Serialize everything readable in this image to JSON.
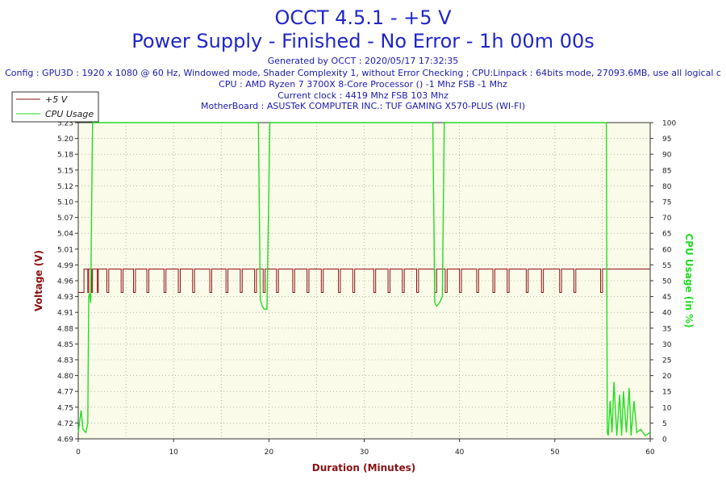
{
  "colors": {
    "title": "#1f26c9",
    "info": "#1a1ab0",
    "voltage": "#8b1111",
    "cpu": "#22dd22",
    "plot_bg": "#fbfbea",
    "grid": "#8a8a70",
    "axis_text": "#202020"
  },
  "chart_data": {
    "type": "line",
    "title": "OCCT 4.5.1 - +5 V",
    "subtitle": "Power Supply - Finished - No Error - 1h 00m 00s",
    "info_lines": [
      "Generated by OCCT : 2020/05/17 17:32:35",
      "Config : GPU3D : 1920 x 1080 @ 60 Hz, Windowed mode, Shader Complexity 1, without Error Checking ; CPU:Linpack : 64bits mode, 27093.6MB, use all logical c",
      "CPU : AMD Ryzen 7 3700X 8-Core Processor () -1 Mhz FSB -1 Mhz",
      "Current clock : 4419 Mhz FSB 103 Mhz",
      "MotherBoard : ASUSTeK COMPUTER INC.: TUF GAMING X570-PLUS (WI-FI)"
    ],
    "xlabel": "Duration (Minutes)",
    "ylabel_left": "Voltage (V)",
    "ylabel_right": "CPU Usage (in %)",
    "xlim": [
      0,
      60
    ],
    "xticks": [
      "0",
      "10",
      "20",
      "30",
      "40",
      "50",
      "60"
    ],
    "ylim_left": [
      4.69,
      5.23
    ],
    "yticks_left": [
      "4.69",
      "4.72",
      "4.75",
      "4.77",
      "4.80",
      "4.83",
      "4.85",
      "4.88",
      "4.91",
      "4.93",
      "4.96",
      "4.99",
      "5.01",
      "5.04",
      "5.07",
      "5.10",
      "5.12",
      "5.15",
      "5.18",
      "5.20",
      "5.23"
    ],
    "ylim_right": [
      0,
      100
    ],
    "yticks_right": [
      "0",
      "5",
      "10",
      "15",
      "20",
      "25",
      "30",
      "35",
      "40",
      "45",
      "50",
      "55",
      "60",
      "65",
      "70",
      "75",
      "80",
      "85",
      "90",
      "95",
      "100"
    ],
    "grid": true,
    "legend": {
      "position": "top-left",
      "items": [
        "+5 V",
        "CPU Usage"
      ]
    },
    "series": [
      {
        "name": "+5 V",
        "axis": "left",
        "base": 4.94,
        "high": 4.98,
        "final_level": 4.98,
        "final_from_minute": 55.0,
        "note_pattern": "oscillates between low and high level while load runs",
        "x": [
          0,
          0.5,
          0.6,
          1.0,
          1.1,
          1.4,
          1.5,
          2.0,
          2.1,
          3.0,
          3.2,
          4.5,
          4.7,
          5.8,
          6.0,
          7.2,
          7.4,
          9.0,
          9.2,
          10.5,
          10.7,
          12.0,
          12.2,
          13.8,
          14.0,
          15.5,
          15.7,
          17.0,
          17.2,
          18.5,
          18.7,
          19.4,
          19.6,
          20.8,
          21.0,
          22.5,
          22.7,
          24.0,
          24.2,
          25.5,
          25.7,
          27.3,
          27.5,
          28.8,
          29.0,
          31.0,
          31.2,
          32.5,
          32.7,
          34.0,
          34.2,
          35.5,
          35.7,
          37.4,
          37.6,
          38.5,
          38.7,
          40.0,
          40.2,
          41.8,
          42.0,
          43.5,
          43.7,
          45.0,
          45.2,
          47.0,
          47.2,
          48.6,
          48.8,
          50.5,
          50.7,
          52.0,
          52.2,
          54.8,
          55.0,
          60
        ],
        "values": [
          4.94,
          4.94,
          4.98,
          4.94,
          4.98,
          4.94,
          4.98,
          4.94,
          4.98,
          4.94,
          4.98,
          4.94,
          4.98,
          4.94,
          4.98,
          4.94,
          4.98,
          4.94,
          4.98,
          4.94,
          4.98,
          4.94,
          4.98,
          4.94,
          4.98,
          4.94,
          4.98,
          4.94,
          4.98,
          4.94,
          4.98,
          4.94,
          4.98,
          4.94,
          4.98,
          4.94,
          4.98,
          4.94,
          4.98,
          4.94,
          4.98,
          4.94,
          4.98,
          4.94,
          4.98,
          4.94,
          4.98,
          4.94,
          4.98,
          4.94,
          4.98,
          4.94,
          4.98,
          4.94,
          4.98,
          4.94,
          4.98,
          4.94,
          4.98,
          4.94,
          4.98,
          4.94,
          4.98,
          4.94,
          4.98,
          4.94,
          4.98,
          4.94,
          4.98,
          4.94,
          4.98,
          4.94,
          4.98,
          4.94,
          4.98,
          4.98
        ]
      },
      {
        "name": "CPU Usage",
        "axis": "right",
        "x": [
          0,
          0.3,
          0.5,
          0.8,
          1.0,
          1.1,
          1.2,
          1.3,
          1.5,
          1.7,
          18.9,
          19.1,
          19.3,
          19.5,
          19.8,
          20.1,
          37.2,
          37.4,
          37.6,
          37.9,
          38.2,
          38.4,
          55.4,
          55.5,
          55.6,
          55.8,
          56.0,
          56.2,
          56.5,
          56.8,
          57.0,
          57.2,
          57.5,
          57.8,
          58.0,
          58.3,
          58.6,
          59.0,
          59.5,
          60
        ],
        "values": [
          2,
          9,
          3,
          2,
          5,
          45,
          46,
          43,
          100,
          100,
          100,
          44,
          42,
          41,
          41,
          100,
          100,
          43,
          42,
          43,
          45,
          100,
          100,
          2,
          1,
          12,
          2,
          18,
          1,
          14,
          1,
          15,
          2,
          16,
          1,
          12,
          2,
          3,
          1,
          2
        ]
      }
    ]
  }
}
